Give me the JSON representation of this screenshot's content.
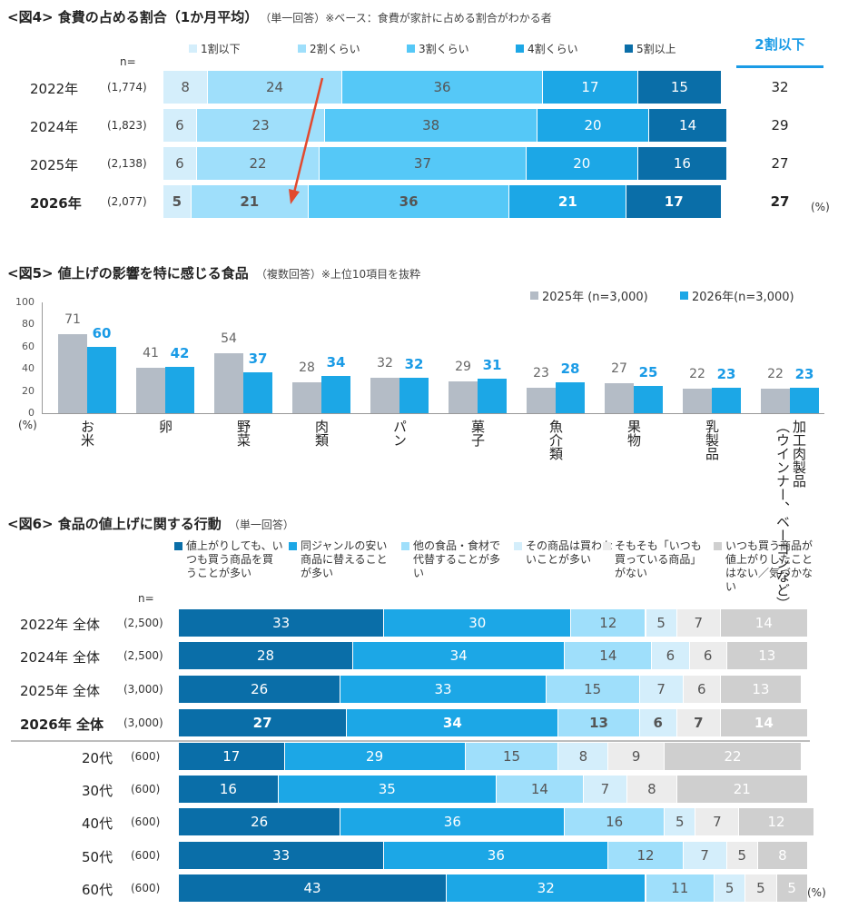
{
  "colors": {
    "c1": "#0a6ea8",
    "c2": "#1ca7e6",
    "c3": "#55c8f7",
    "c4": "#9fdffb",
    "c5": "#d4eefb",
    "grey1": "#ececec",
    "grey2": "#cfcfcf",
    "accent": "#1a9be6",
    "old": "#b4bcc6",
    "arrow": "#e2492e"
  },
  "fig4": {
    "title": "<図4> 食費の占める割合（1か月平均）",
    "note": "（単一回答）※ベース：食費が家計に占める割合がわかる者",
    "n_label": "n=",
    "pct_label": "(%)",
    "side_header": "2割以下",
    "chart_data": {
      "type": "bar",
      "orientation": "horizontal-stacked-100",
      "legend": [
        "1割以下",
        "2割くらい",
        "3割くらい",
        "4割くらい",
        "5割以上"
      ],
      "categories": [
        "2022年",
        "2024年",
        "2025年",
        "2026年"
      ],
      "n": [
        "(1,774)",
        "(1,823)",
        "(2,138)",
        "(2,077)"
      ],
      "series": [
        {
          "name": "1割以下",
          "values": [
            8,
            6,
            6,
            5
          ]
        },
        {
          "name": "2割くらい",
          "values": [
            24,
            23,
            22,
            21
          ]
        },
        {
          "name": "3割くらい",
          "values": [
            36,
            38,
            37,
            36
          ]
        },
        {
          "name": "4割くらい",
          "values": [
            17,
            20,
            20,
            21
          ]
        },
        {
          "name": "5割以上",
          "values": [
            15,
            14,
            16,
            17
          ]
        }
      ],
      "side_values": [
        "32",
        "29",
        "27",
        "27"
      ]
    }
  },
  "fig5": {
    "title": "<図5> 値上げの影響を特に感じる食品",
    "note": "（複数回答）※上位10項目を抜粋",
    "pct_label": "(%)",
    "chart_data": {
      "type": "bar",
      "ylim": [
        0,
        100
      ],
      "yticks": [
        0,
        20,
        40,
        60,
        80,
        100
      ],
      "categories": [
        "お米",
        "卵",
        "野菜",
        "肉類",
        "パン",
        "菓子",
        "魚介類",
        "果物",
        "乳製品",
        "加工肉製品（ウインナー、ベーコンなど）"
      ],
      "series": [
        {
          "name": "2025年 (n=3,000)",
          "values": [
            71,
            41,
            54,
            28,
            32,
            29,
            23,
            27,
            22,
            22
          ]
        },
        {
          "name": "2026年(n=3,000)",
          "values": [
            60,
            42,
            37,
            34,
            32,
            31,
            28,
            25,
            23,
            23
          ]
        }
      ]
    }
  },
  "fig6": {
    "title": "<図6> 食品の値上げに関する行動",
    "note": "（単一回答）",
    "n_label": "n=",
    "pct_label": "(%)",
    "chart_data": {
      "type": "bar",
      "orientation": "horizontal-stacked-100",
      "legend": [
        "値上がりしても、いつも買う商品を買うことが多い",
        "同ジャンルの安い商品に替えることが多い",
        "他の食品・食材で代替することが多い",
        "その商品は買わないことが多い",
        "そもそも「いつも買っている商品」がない",
        "いつも買う商品が値上がりしたことはない／気づかない"
      ],
      "categories": [
        "2022年 全体",
        "2024年 全体",
        "2025年 全体",
        "2026年 全体",
        "20代",
        "30代",
        "40代",
        "50代",
        "60代"
      ],
      "n": [
        "(2,500)",
        "(2,500)",
        "(3,000)",
        "(3,000)",
        "(600)",
        "(600)",
        "(600)",
        "(600)",
        "(600)"
      ],
      "series": [
        {
          "name": "値上がりしても、いつも買う商品を買うことが多い",
          "values": [
            33,
            28,
            26,
            27,
            17,
            16,
            26,
            33,
            43
          ]
        },
        {
          "name": "同ジャンルの安い商品に替えることが多い",
          "values": [
            30,
            34,
            33,
            34,
            29,
            35,
            36,
            36,
            32
          ]
        },
        {
          "name": "他の食品・食材で代替することが多い",
          "values": [
            12,
            14,
            15,
            13,
            15,
            14,
            16,
            12,
            11
          ]
        },
        {
          "name": "その商品は買わないことが多い",
          "values": [
            5,
            6,
            7,
            6,
            8,
            7,
            5,
            7,
            5
          ]
        },
        {
          "name": "そもそも「いつも買っている商品」がない",
          "values": [
            7,
            6,
            6,
            7,
            9,
            8,
            7,
            5,
            5
          ]
        },
        {
          "name": "いつも買う商品が値上がりしたことはない／気づかない",
          "values": [
            14,
            13,
            13,
            14,
            22,
            21,
            12,
            8,
            5
          ]
        }
      ]
    }
  }
}
